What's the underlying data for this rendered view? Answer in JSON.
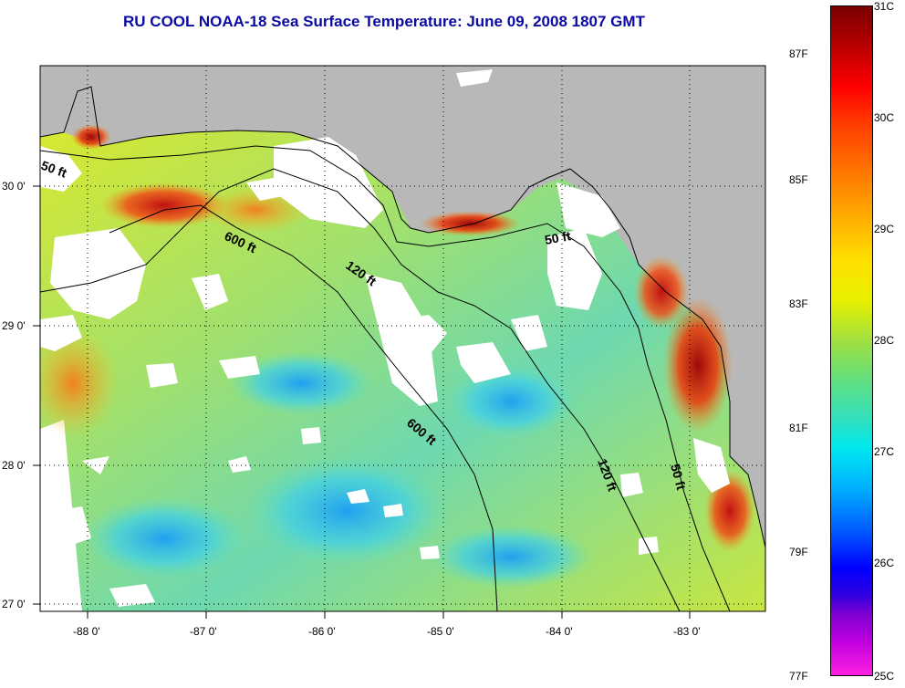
{
  "title": "RU COOL  NOAA-18  Sea Surface Temperature:  June 09, 2008 1807 GMT",
  "map": {
    "lon_ticks": [
      "-88 0'",
      "-87 0'",
      "-86 0'",
      "-85 0'",
      "-84 0'",
      "-83 0'"
    ],
    "lat_ticks": [
      "30 0'",
      "29 0'",
      "28 0'",
      "27 0'"
    ],
    "contours": [
      "50 ft",
      "600 ft",
      "120 ft",
      "50 ft",
      "600 ft",
      "120 ft",
      "50 ft"
    ],
    "colors": {
      "land": "#b8b8b8",
      "cloud": "#ffffff",
      "frame": "#000000"
    }
  },
  "colorbar": {
    "celsius": [
      "31C",
      "30C",
      "29C",
      "28C",
      "27C",
      "26C",
      "25C"
    ],
    "fahrenheit": [
      "87F",
      "85F",
      "83F",
      "81F",
      "79F",
      "77F"
    ]
  }
}
